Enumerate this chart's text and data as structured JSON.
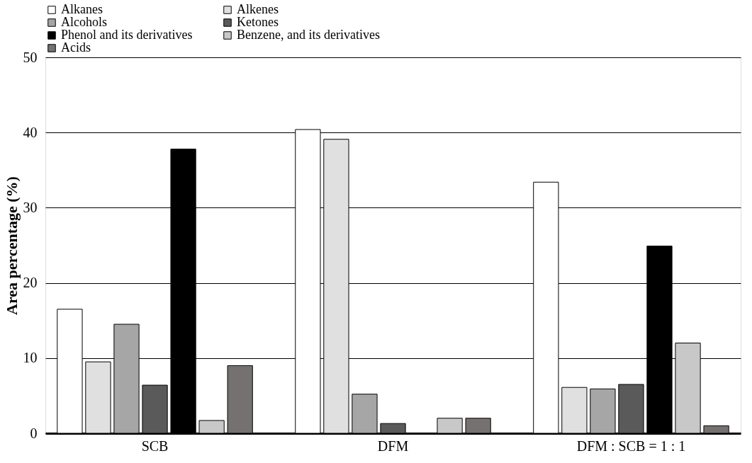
{
  "chart_data": {
    "type": "bar",
    "ylabel": "Area percentage (%)",
    "categories": [
      "SCB",
      "DFM",
      "DFM : SCB = 1 : 1"
    ],
    "series": [
      {
        "name": "Alkanes",
        "color": "#ffffff",
        "values": [
          16.5,
          40.4,
          33.4
        ]
      },
      {
        "name": "Alkenes",
        "color": "#e0e0e0",
        "values": [
          9.5,
          39.1,
          6.1
        ]
      },
      {
        "name": "Alcohols",
        "color": "#a6a6a6",
        "values": [
          14.5,
          5.2,
          5.9
        ]
      },
      {
        "name": "Ketones",
        "color": "#5a5a5a",
        "values": [
          6.4,
          1.3,
          6.5
        ]
      },
      {
        "name": "Phenol and its derivatives",
        "color": "#000000",
        "values": [
          37.8,
          0,
          24.9
        ]
      },
      {
        "name": "Benzene, and its derivatives",
        "color": "#c8c8c8",
        "values": [
          1.7,
          2.0,
          12.0
        ]
      },
      {
        "name": "Acids",
        "color": "#767171",
        "values": [
          9.0,
          2.0,
          1.0
        ]
      }
    ],
    "ylim": [
      0,
      50
    ],
    "yticks": [
      0,
      10,
      20,
      30,
      40,
      50
    ],
    "grid": "y",
    "legend": "top"
  }
}
